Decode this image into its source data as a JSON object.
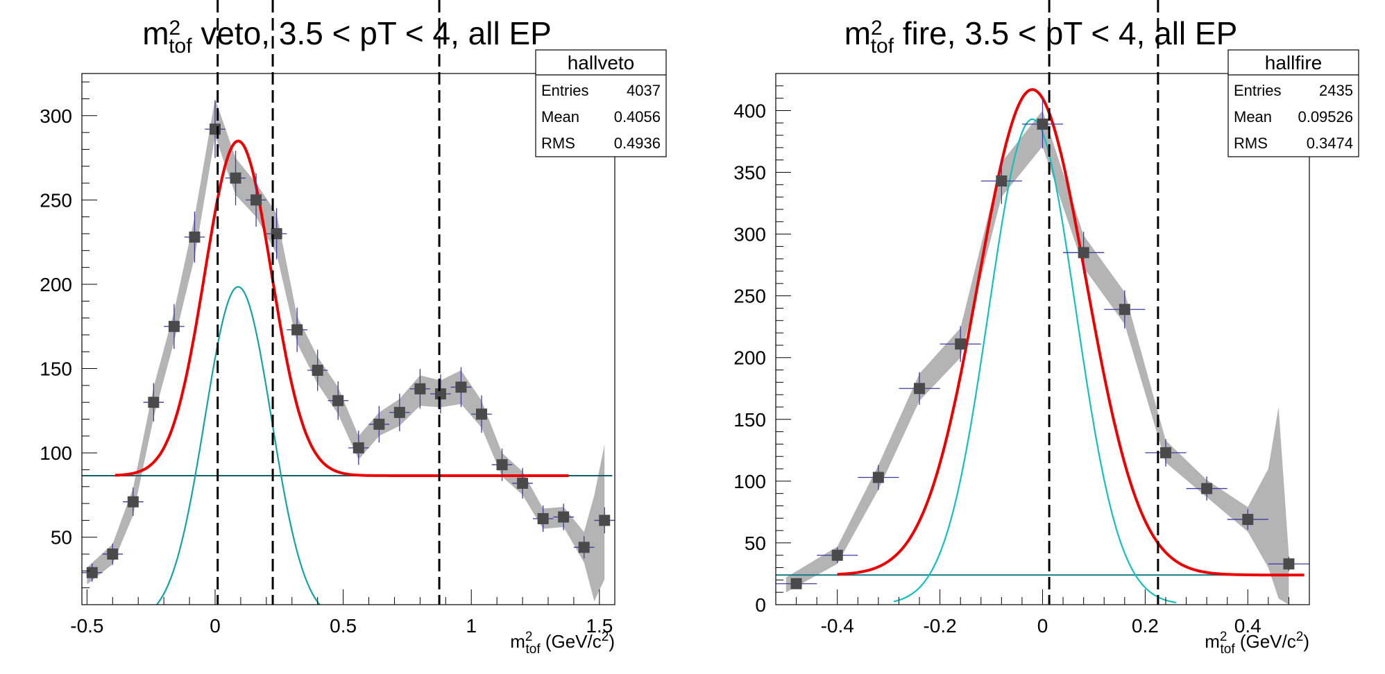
{
  "chart_data": [
    {
      "type": "scatter",
      "title": {
        "pre": "m",
        "sup": "2",
        "sub": "tof",
        "post": " veto, 3.5 < pT < 4, all EP"
      },
      "xlabel": {
        "pre": "m",
        "sup": "2",
        "sub": "tof",
        "post": " (GeV/c",
        "sup2": "2",
        "post2": ")"
      },
      "xlim": [
        -0.52,
        1.56
      ],
      "ylim": [
        10,
        325
      ],
      "xticks": [
        -0.5,
        0,
        0.5,
        1,
        1.5
      ],
      "xtick_labels": [
        "-0.5",
        "0",
        "0.5",
        "1",
        "1.5"
      ],
      "yticks": [
        50,
        100,
        150,
        200,
        250,
        300
      ],
      "ytick_labels": [
        "50",
        "100",
        "150",
        "200",
        "250",
        "300"
      ],
      "x_half_width": 0.04,
      "stats": {
        "name": "hallveto",
        "rows": [
          [
            "Entries",
            "4037"
          ],
          [
            "Mean",
            "0.4056"
          ],
          [
            "RMS",
            "0.4936"
          ]
        ]
      },
      "points": [
        {
          "x": -0.48,
          "y": 29
        },
        {
          "x": -0.4,
          "y": 40
        },
        {
          "x": -0.32,
          "y": 71
        },
        {
          "x": -0.24,
          "y": 130
        },
        {
          "x": -0.16,
          "y": 175
        },
        {
          "x": -0.08,
          "y": 228
        },
        {
          "x": 0.0,
          "y": 292
        },
        {
          "x": 0.08,
          "y": 263
        },
        {
          "x": 0.16,
          "y": 250
        },
        {
          "x": 0.24,
          "y": 230
        },
        {
          "x": 0.32,
          "y": 173
        },
        {
          "x": 0.4,
          "y": 149
        },
        {
          "x": 0.48,
          "y": 131
        },
        {
          "x": 0.56,
          "y": 103
        },
        {
          "x": 0.64,
          "y": 117
        },
        {
          "x": 0.72,
          "y": 124
        },
        {
          "x": 0.8,
          "y": 138
        },
        {
          "x": 0.88,
          "y": 135
        },
        {
          "x": 0.96,
          "y": 139
        },
        {
          "x": 1.04,
          "y": 123
        },
        {
          "x": 1.12,
          "y": 93
        },
        {
          "x": 1.2,
          "y": 82
        },
        {
          "x": 1.28,
          "y": 61
        },
        {
          "x": 1.36,
          "y": 62
        },
        {
          "x": 1.44,
          "y": 44
        },
        {
          "x": 1.52,
          "y": 60
        }
      ],
      "band": [
        {
          "x": -0.5,
          "lo": 22,
          "hi": 32
        },
        {
          "x": -0.4,
          "lo": 34,
          "hi": 46
        },
        {
          "x": -0.32,
          "lo": 63,
          "hi": 79
        },
        {
          "x": -0.24,
          "lo": 121,
          "hi": 139
        },
        {
          "x": -0.16,
          "lo": 166,
          "hi": 184
        },
        {
          "x": -0.08,
          "lo": 216,
          "hi": 240
        },
        {
          "x": 0.0,
          "lo": 288,
          "hi": 310
        },
        {
          "x": 0.08,
          "lo": 253,
          "hi": 275
        },
        {
          "x": 0.16,
          "lo": 240,
          "hi": 260
        },
        {
          "x": 0.24,
          "lo": 218,
          "hi": 242
        },
        {
          "x": 0.32,
          "lo": 165,
          "hi": 181
        },
        {
          "x": 0.4,
          "lo": 141,
          "hi": 157
        },
        {
          "x": 0.48,
          "lo": 123,
          "hi": 139
        },
        {
          "x": 0.56,
          "lo": 96,
          "hi": 110
        },
        {
          "x": 0.64,
          "lo": 110,
          "hi": 124
        },
        {
          "x": 0.72,
          "lo": 116,
          "hi": 132
        },
        {
          "x": 0.8,
          "lo": 128,
          "hi": 146
        },
        {
          "x": 0.88,
          "lo": 127,
          "hi": 143
        },
        {
          "x": 0.96,
          "lo": 129,
          "hi": 149
        },
        {
          "x": 1.04,
          "lo": 115,
          "hi": 131
        },
        {
          "x": 1.12,
          "lo": 86,
          "hi": 100
        },
        {
          "x": 1.2,
          "lo": 75,
          "hi": 89
        },
        {
          "x": 1.28,
          "lo": 55,
          "hi": 67
        },
        {
          "x": 1.36,
          "lo": 56,
          "hi": 68
        },
        {
          "x": 1.44,
          "lo": 35,
          "hi": 53
        },
        {
          "x": 1.48,
          "lo": 12,
          "hi": 75
        },
        {
          "x": 1.52,
          "lo": 25,
          "hi": 105
        }
      ],
      "total_fit": {
        "x_range": [
          -0.39,
          1.38
        ],
        "baseline": 86.5,
        "amp": 198.5,
        "mu": 0.09,
        "sigma": 0.13
      },
      "gauss_component": {
        "x_range": [
          -0.35,
          0.54
        ],
        "amp": 198.5,
        "mu": 0.09,
        "sigma": 0.13
      },
      "baseline_line": {
        "x_range": [
          -0.52,
          1.55
        ],
        "y": 86.5
      },
      "vlines": [
        0.01,
        0.225,
        0.875
      ],
      "colors": {
        "band": "#b4b4b4",
        "marker": "#4a4a4a",
        "errbar": "#3a3aa0",
        "total": "#ee0000",
        "component": "#13a3a3",
        "baseline": "#0f5f68"
      }
    },
    {
      "type": "scatter",
      "title": {
        "pre": "m",
        "sup": "2",
        "sub": "tof",
        "post": " fire, 3.5 < pT < 4, all EP"
      },
      "xlabel": {
        "pre": "m",
        "sup": "2",
        "sub": "tof",
        "post": " (GeV/c",
        "sup2": "2",
        "post2": ")"
      },
      "xlim": [
        -0.52,
        0.52
      ],
      "ylim": [
        0,
        430
      ],
      "xticks": [
        -0.4,
        -0.2,
        0,
        0.2,
        0.4
      ],
      "xtick_labels": [
        "-0.4",
        "-0.2",
        "0",
        "0.2",
        "0.4"
      ],
      "yticks": [
        0,
        50,
        100,
        150,
        200,
        250,
        300,
        350,
        400
      ],
      "ytick_labels": [
        "0",
        "50",
        "100",
        "150",
        "200",
        "250",
        "300",
        "350",
        "400"
      ],
      "x_half_width": 0.04,
      "stats": {
        "name": "hallfire",
        "rows": [
          [
            "Entries",
            "2435"
          ],
          [
            "Mean",
            "0.09526"
          ],
          [
            "RMS",
            "0.3474"
          ]
        ]
      },
      "points": [
        {
          "x": -0.48,
          "y": 17
        },
        {
          "x": -0.4,
          "y": 40
        },
        {
          "x": -0.32,
          "y": 103
        },
        {
          "x": -0.24,
          "y": 175
        },
        {
          "x": -0.16,
          "y": 211
        },
        {
          "x": -0.08,
          "y": 343
        },
        {
          "x": 0.0,
          "y": 389
        },
        {
          "x": 0.08,
          "y": 285
        },
        {
          "x": 0.16,
          "y": 239
        },
        {
          "x": 0.24,
          "y": 123
        },
        {
          "x": 0.32,
          "y": 94
        },
        {
          "x": 0.4,
          "y": 69
        },
        {
          "x": 0.48,
          "y": 33
        }
      ],
      "band": [
        {
          "x": -0.5,
          "lo": 10,
          "hi": 22
        },
        {
          "x": -0.4,
          "lo": 33,
          "hi": 47
        },
        {
          "x": -0.32,
          "lo": 93,
          "hi": 113
        },
        {
          "x": -0.24,
          "lo": 165,
          "hi": 187
        },
        {
          "x": -0.16,
          "lo": 200,
          "hi": 224
        },
        {
          "x": -0.08,
          "lo": 330,
          "hi": 358
        },
        {
          "x": 0.0,
          "lo": 371,
          "hi": 400
        },
        {
          "x": 0.08,
          "lo": 273,
          "hi": 299
        },
        {
          "x": 0.16,
          "lo": 227,
          "hi": 253
        },
        {
          "x": 0.24,
          "lo": 115,
          "hi": 133
        },
        {
          "x": 0.32,
          "lo": 87,
          "hi": 101
        },
        {
          "x": 0.4,
          "lo": 59,
          "hi": 79
        },
        {
          "x": 0.44,
          "lo": 30,
          "hi": 110
        },
        {
          "x": 0.46,
          "lo": 5,
          "hi": 160
        },
        {
          "x": 0.48,
          "lo": 0,
          "hi": 40
        }
      ],
      "total_fit": {
        "x_range": [
          -0.4,
          0.51
        ],
        "baseline": 24,
        "amp": 393,
        "mu": -0.02,
        "sigma": 0.105
      },
      "gauss_component": {
        "x_range": [
          -0.29,
          0.26
        ],
        "amp": 393,
        "mu": -0.02,
        "sigma": 0.085
      },
      "baseline_line": {
        "x_range": [
          -0.52,
          0.51
        ],
        "y": 24
      },
      "vlines": [
        0.013,
        0.225
      ],
      "colors": {
        "band": "#b4b4b4",
        "marker": "#4a4a4a",
        "errbar": "#3a3aa0",
        "total": "#ee0000",
        "component": "#13bfbf",
        "baseline": "#0f7a84"
      }
    }
  ]
}
